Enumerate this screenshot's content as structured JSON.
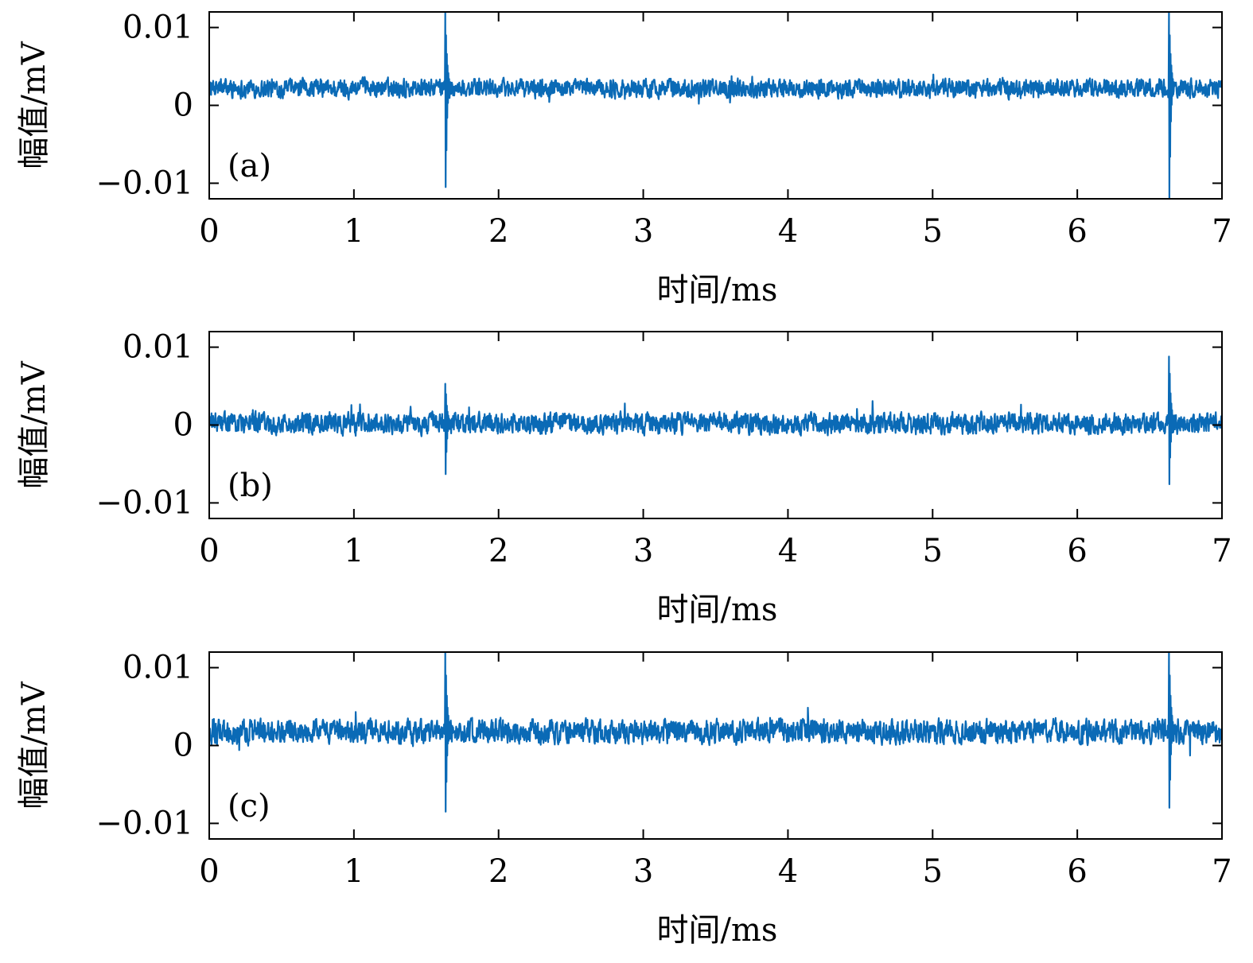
{
  "chart_data": [
    {
      "type": "line",
      "panel_label": "(a)",
      "xlabel": "时间/ms",
      "ylabel": "幅值/mV",
      "xlim": [
        0,
        7
      ],
      "ylim": [
        -0.012,
        0.012
      ],
      "xticks": [
        0,
        1,
        2,
        3,
        4,
        5,
        6,
        7
      ],
      "xtick_labels": [
        "0",
        "1",
        "2",
        "3",
        "4",
        "5",
        "6",
        "7"
      ],
      "yticks": [
        -0.01,
        0,
        0.01
      ],
      "ytick_labels": [
        "−0.01",
        "0",
        "0.01"
      ],
      "grid": false,
      "color": "#0a6ab6",
      "series": [
        {
          "noise_mean": 0.0022,
          "noise_amplitude": 0.0016,
          "events": [
            {
              "x": 1.63,
              "max": 0.012,
              "min": -0.0105
            },
            {
              "x": 6.63,
              "max": 0.012,
              "min": -0.012
            }
          ]
        }
      ]
    },
    {
      "type": "line",
      "panel_label": "(b)",
      "xlabel": "时间/ms",
      "ylabel": "幅值/mV",
      "xlim": [
        0,
        7
      ],
      "ylim": [
        -0.012,
        0.012
      ],
      "xticks": [
        0,
        1,
        2,
        3,
        4,
        5,
        6,
        7
      ],
      "xtick_labels": [
        "0",
        "1",
        "2",
        "3",
        "4",
        "5",
        "6",
        "7"
      ],
      "yticks": [
        -0.01,
        0,
        0.01
      ],
      "ytick_labels": [
        "−0.01",
        "0",
        "0.01"
      ],
      "grid": false,
      "color": "#0a6ab6",
      "series": [
        {
          "noise_mean": 0.0002,
          "noise_amplitude": 0.0018,
          "events": [
            {
              "x": 1.63,
              "max": 0.0053,
              "min": -0.0063
            },
            {
              "x": 6.63,
              "max": 0.0088,
              "min": -0.0076
            }
          ]
        }
      ]
    },
    {
      "type": "line",
      "panel_label": "(c)",
      "xlabel": "时间/ms",
      "ylabel": "幅值/mV",
      "xlim": [
        0,
        7
      ],
      "ylim": [
        -0.012,
        0.012
      ],
      "xticks": [
        0,
        1,
        2,
        3,
        4,
        5,
        6,
        7
      ],
      "xtick_labels": [
        "0",
        "1",
        "2",
        "3",
        "4",
        "5",
        "6",
        "7"
      ],
      "yticks": [
        -0.01,
        0,
        0.01
      ],
      "ytick_labels": [
        "−0.01",
        "0",
        "0.01"
      ],
      "grid": false,
      "color": "#0a6ab6",
      "series": [
        {
          "noise_mean": 0.0018,
          "noise_amplitude": 0.002,
          "events": [
            {
              "x": 1.63,
              "max": 0.012,
              "min": -0.0085
            },
            {
              "x": 6.63,
              "max": 0.012,
              "min": -0.008
            }
          ]
        }
      ]
    }
  ]
}
